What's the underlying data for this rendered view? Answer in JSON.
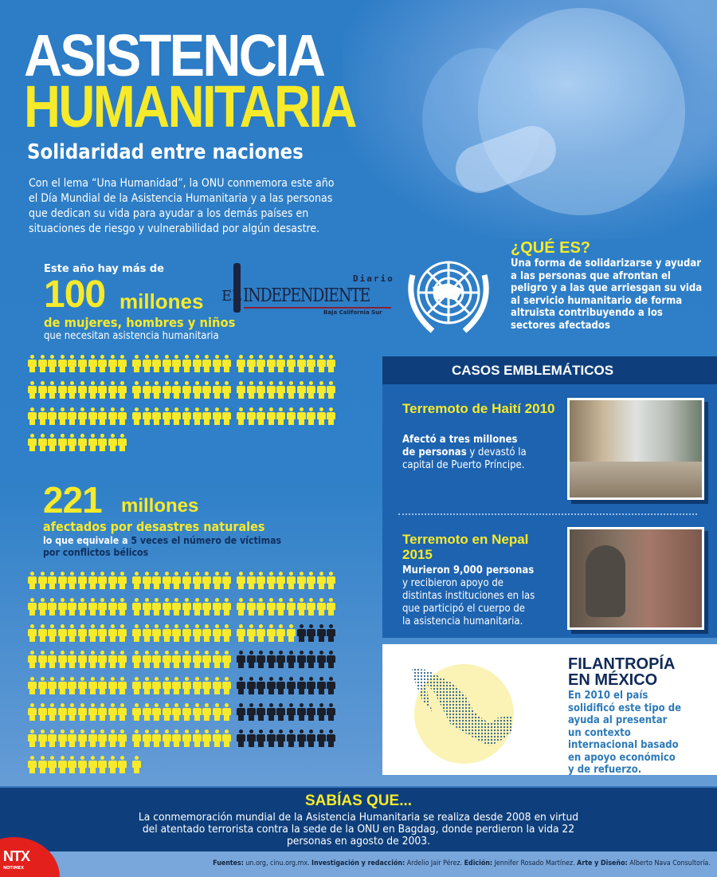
{
  "header": {
    "title_line1": "ASISTENCIA",
    "title_line2": "HUMANITARIA",
    "subtitle": "Solidaridad entre naciones",
    "intro": "Con el lema “Una Humanidad”, la ONU conmemora este año el Día Mundial de la Asistencia Humanitaria  y a las personas que dedican su vida para ayudar a los demás países en situaciones de riesgo y vulnerabilidad por algún desastre."
  },
  "logo": {
    "el": "EL",
    "name": "INDEPENDIENTE",
    "diario": "Diario",
    "region": "Baja California Sur"
  },
  "stat1": {
    "pre": "Este año hay más de",
    "number": "100",
    "unit": "millones",
    "line1": "de mujeres, hombres y niños",
    "line2": "que necesitan asistencia humanitaria",
    "pictogram_rows": [
      {
        "yellow": 30,
        "black": 0
      },
      {
        "yellow": 30,
        "black": 0
      },
      {
        "yellow": 30,
        "black": 0
      },
      {
        "yellow": 10,
        "black": 0
      }
    ]
  },
  "stat2": {
    "number": "221",
    "unit": "millones",
    "line1": "afectados por desastres naturales",
    "line2_a": "lo que equivale a ",
    "line2_b": "5 veces el número de víctimas",
    "line3": "por conflictos bélicos",
    "pictogram_rows": [
      {
        "yellow": 30,
        "black": 0
      },
      {
        "yellow": 30,
        "black": 0
      },
      {
        "yellow": 26,
        "black": 4
      },
      {
        "yellow": 20,
        "black": 10
      },
      {
        "yellow": 20,
        "black": 10
      },
      {
        "yellow": 20,
        "black": 10
      },
      {
        "yellow": 20,
        "black": 10
      },
      {
        "yellow": 11,
        "black": 0
      }
    ]
  },
  "que_es": {
    "title": "¿QUÉ ES?",
    "text": "Una forma de solidarizarse y ayudar a las personas que afrontan el peligro y a las que arriesgan su vida al servicio humanitario de forma altruista contribuyendo a los sectores afectados"
  },
  "casos": {
    "title": "CASOS EMBLEMÁTICOS",
    "items": [
      {
        "title": "Terremoto de Haití 2010",
        "bold": "Afectó a tres millones de personas",
        "rest": " y devastó la capital de Puerto Príncipe."
      },
      {
        "title": "Terremoto en Nepal 2015",
        "bold": "Murieron 9,000 personas",
        "rest": " y recibieron apoyo de distintas instituciones en las que participó el cuerpo de la asistencia humanitaria."
      }
    ]
  },
  "filantropia": {
    "title1": "FILANTROPÍA",
    "title2": "EN MÉXICO",
    "text": "En 2010 el país solidificó este tipo de ayuda al presentar un contexto internacional basado en apoyo económico y de refuerzo."
  },
  "sabias": {
    "title": "SABÍAS QUE...",
    "text": "La conmemoración mundial de la Asistencia Humanitaria se realiza desde 2008 en virtud del atentado terrorista contra la sede de la ONU en Bagdag, donde perdieron la vida 22 personas en agosto de 2003."
  },
  "footer": {
    "fuentes_label": "Fuentes:",
    "fuentes": " un.org, cinu.org.mx.  ",
    "inv_label": "Investigación y redacción:",
    "inv": " Ardelio Jair Pérez.  ",
    "ed_label": "Edición:",
    "ed": " Jennifer Rosado Martínez.  ",
    "arte_label": "Arte y Diseño:",
    "arte": " Alberto Nava Consultoría."
  },
  "ntx": {
    "name": "NTX",
    "sub": "NOTIMEX"
  },
  "colors": {
    "yellow": "#f7ea2a",
    "dark": "#1b1f2a",
    "band": "#0e3f7c",
    "ntx_red": "#e3201b"
  }
}
